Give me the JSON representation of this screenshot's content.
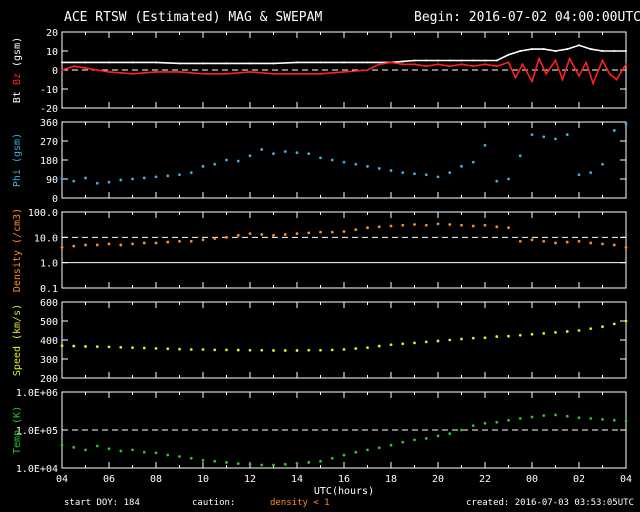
{
  "header": {
    "title": "ACE RTSW (Estimated) MAG & SWEPAM",
    "begin": "Begin: 2016-07-02 04:00:00UTC"
  },
  "footer": {
    "start_doy": "start DOY: 184",
    "caution_label": "caution:",
    "caution_text": "density < 1",
    "created": "created: 2016-07-03 03:53:05UTC"
  },
  "colors": {
    "background": "#000000",
    "axis": "#ffffff",
    "bt": "#ffffff",
    "bz": "#ff2020",
    "phi": "#3ab0e0",
    "density": "#ff8c20",
    "speed": "#e6e62a",
    "temp": "#30c030",
    "caution": "#ff8c20"
  },
  "chart_data": [
    {
      "id": "mag",
      "type": "line",
      "ylabel": [
        "Bt",
        "Bz",
        "(gsm)"
      ],
      "ylabel_colors": [
        "#ffffff",
        "#ff2020",
        "#ffffff"
      ],
      "ylim": [
        -20,
        20
      ],
      "yticks": [
        -20,
        -10,
        0,
        10,
        20
      ],
      "ytick_labels": [
        "-20",
        "-10",
        "0",
        "10",
        "20"
      ],
      "reference_lines": [
        0
      ],
      "series": [
        {
          "color": "#ffffff",
          "style": "line",
          "x": [
            0,
            1,
            2,
            3,
            4,
            5,
            6,
            7,
            8,
            9,
            10,
            11,
            12,
            13,
            14,
            14.5,
            15,
            15.5,
            16,
            16.5,
            17,
            17.5,
            18,
            18.5,
            19,
            19.5,
            20,
            20.5,
            21,
            21.5,
            22,
            22.5,
            23,
            23.5,
            24
          ],
          "y": [
            4,
            4,
            4,
            4,
            4,
            3.5,
            3.5,
            3.5,
            3.5,
            3.5,
            4,
            4,
            4,
            4,
            4,
            4.5,
            5,
            5,
            5,
            5,
            5,
            5,
            5,
            5,
            8,
            10,
            11,
            11,
            10,
            11,
            13,
            11,
            10,
            10,
            10
          ]
        },
        {
          "color": "#ff2020",
          "style": "line",
          "x": [
            0,
            0.5,
            1,
            2,
            3,
            4,
            5,
            6,
            7,
            8,
            9,
            10,
            11,
            12,
            13,
            13.5,
            14,
            14.5,
            15,
            15.5,
            16,
            16.5,
            17,
            17.5,
            18,
            18.5,
            19,
            19.3,
            19.6,
            20,
            20.3,
            20.6,
            21,
            21.3,
            21.6,
            22,
            22.3,
            22.6,
            23,
            23.3,
            23.6,
            24
          ],
          "y": [
            0,
            2,
            1,
            -1,
            -2,
            -1,
            -1,
            -2,
            -2,
            -1,
            -2,
            -2,
            -2,
            -1,
            0,
            3,
            4,
            3,
            3,
            2,
            3,
            2,
            3,
            2,
            3,
            2,
            4,
            -4,
            3,
            -6,
            6,
            -2,
            5,
            -5,
            6,
            -3,
            4,
            -7,
            5,
            -2,
            -5,
            3
          ]
        }
      ]
    },
    {
      "id": "phi",
      "type": "scatter",
      "ylabel": [
        "Phi (gsm)"
      ],
      "ylabel_colors": [
        "#3ab0e0"
      ],
      "ylim": [
        0,
        360
      ],
      "yticks": [
        0,
        90,
        180,
        270,
        360
      ],
      "ytick_labels": [
        "0",
        "90",
        "180",
        "270",
        "360"
      ],
      "reference_lines": [],
      "series": [
        {
          "color": "#3ab0e0",
          "style": "dots",
          "x": [
            0,
            0.5,
            1,
            1.5,
            2,
            2.5,
            3,
            3.5,
            4,
            4.5,
            5,
            5.5,
            6,
            6.5,
            7,
            7.5,
            8,
            8.5,
            9,
            9.5,
            10,
            10.5,
            11,
            11.5,
            12,
            12.5,
            13,
            13.5,
            14,
            14.5,
            15,
            15.5,
            16,
            16.5,
            17,
            17.5,
            18,
            18.5,
            19,
            19.5,
            20,
            20.5,
            21,
            21.5,
            22,
            22.5,
            23,
            23.5,
            24
          ],
          "y": [
            90,
            80,
            95,
            70,
            75,
            85,
            90,
            95,
            100,
            105,
            110,
            120,
            150,
            160,
            180,
            175,
            200,
            230,
            210,
            220,
            215,
            210,
            190,
            180,
            170,
            160,
            150,
            140,
            130,
            120,
            115,
            110,
            100,
            120,
            150,
            170,
            250,
            80,
            90,
            200,
            300,
            290,
            280,
            300,
            110,
            120,
            160,
            320,
            350
          ]
        }
      ]
    },
    {
      "id": "density",
      "type": "scatter",
      "scale": "log",
      "ylabel": [
        "Density (/cm3)"
      ],
      "ylabel_colors": [
        "#ff8c20"
      ],
      "ylim": [
        0.1,
        100
      ],
      "yticks": [
        0.1,
        1,
        10,
        100
      ],
      "ytick_labels": [
        "0.1",
        "1.0",
        "10.0",
        "100.0"
      ],
      "reference_lines": [
        10
      ],
      "solid_lines": [
        1
      ],
      "series": [
        {
          "color": "#ff8c20",
          "style": "dots",
          "x": [
            0,
            0.5,
            1,
            1.5,
            2,
            2.5,
            3,
            3.5,
            4,
            4.5,
            5,
            5.5,
            6,
            6.5,
            7,
            7.5,
            8,
            8.5,
            9,
            9.5,
            10,
            10.5,
            11,
            11.5,
            12,
            12.5,
            13,
            13.5,
            14,
            14.5,
            15,
            15.5,
            16,
            16.5,
            17,
            17.5,
            18,
            18.5,
            19,
            19.5,
            20,
            20.5,
            21,
            21.5,
            22,
            22.5,
            23,
            23.5,
            24
          ],
          "y": [
            4,
            4.5,
            5,
            5,
            5.5,
            5,
            5.5,
            6,
            6,
            6.5,
            7,
            7,
            8,
            9,
            10,
            12,
            14,
            13,
            12,
            13,
            14,
            15,
            16,
            16,
            17,
            20,
            24,
            26,
            28,
            30,
            32,
            30,
            34,
            32,
            30,
            28,
            30,
            26,
            24,
            7,
            8,
            7,
            6,
            6.5,
            7,
            6,
            5.5,
            5,
            4
          ]
        }
      ]
    },
    {
      "id": "speed",
      "type": "scatter",
      "ylabel": [
        "Speed (km/s)"
      ],
      "ylabel_colors": [
        "#e6e62a"
      ],
      "ylim": [
        200,
        600
      ],
      "yticks": [
        200,
        300,
        400,
        500,
        600
      ],
      "ytick_labels": [
        "200",
        "300",
        "400",
        "500",
        "600"
      ],
      "reference_lines": [],
      "series": [
        {
          "color": "#e6e62a",
          "style": "dots",
          "x": [
            0,
            0.5,
            1,
            1.5,
            2,
            2.5,
            3,
            3.5,
            4,
            4.5,
            5,
            5.5,
            6,
            6.5,
            7,
            7.5,
            8,
            8.5,
            9,
            9.5,
            10,
            10.5,
            11,
            11.5,
            12,
            12.5,
            13,
            13.5,
            14,
            14.5,
            15,
            15.5,
            16,
            16.5,
            17,
            17.5,
            18,
            18.5,
            19,
            19.5,
            20,
            20.5,
            21,
            21.5,
            22,
            22.5,
            23,
            23.5,
            24
          ],
          "y": [
            370,
            368,
            366,
            365,
            364,
            362,
            360,
            358,
            356,
            354,
            352,
            350,
            350,
            348,
            348,
            347,
            346,
            346,
            345,
            345,
            345,
            346,
            346,
            348,
            350,
            355,
            360,
            368,
            375,
            380,
            385,
            390,
            395,
            400,
            405,
            410,
            412,
            418,
            420,
            425,
            430,
            435,
            440,
            445,
            450,
            460,
            470,
            485,
            500
          ]
        }
      ]
    },
    {
      "id": "temp",
      "type": "scatter",
      "scale": "log",
      "ylabel": [
        "Temp (K)"
      ],
      "ylabel_colors": [
        "#30c030"
      ],
      "ylim": [
        10000,
        1000000
      ],
      "yticks": [
        10000,
        100000,
        1000000
      ],
      "ytick_labels": [
        "1.0E+04",
        "1.0E+05",
        "1.0E+06"
      ],
      "reference_lines": [
        100000
      ],
      "series": [
        {
          "color": "#30c030",
          "style": "dots",
          "x": [
            0,
            0.5,
            1,
            1.5,
            2,
            2.5,
            3,
            3.5,
            4,
            4.5,
            5,
            5.5,
            6,
            6.5,
            7,
            7.5,
            8,
            8.5,
            9,
            9.5,
            10,
            10.5,
            11,
            11.5,
            12,
            12.5,
            13,
            13.5,
            14,
            14.5,
            15,
            15.5,
            16,
            16.5,
            17,
            17.5,
            18,
            18.5,
            19,
            19.5,
            20,
            20.5,
            21,
            21.5,
            22,
            22.5,
            23,
            23.5,
            24
          ],
          "y": [
            40000,
            35000,
            30000,
            38000,
            32000,
            28000,
            30000,
            26000,
            25000,
            22000,
            20000,
            18000,
            16000,
            15000,
            14000,
            13000,
            12500,
            12000,
            12000,
            12500,
            13000,
            14000,
            15000,
            18000,
            22000,
            26000,
            30000,
            34000,
            40000,
            48000,
            55000,
            60000,
            70000,
            80000,
            100000,
            130000,
            150000,
            160000,
            180000,
            200000,
            220000,
            240000,
            250000,
            230000,
            210000,
            200000,
            190000,
            180000,
            170000
          ]
        }
      ]
    }
  ],
  "x_axis": {
    "label": "UTC(hours)",
    "range_hours": [
      0,
      24
    ],
    "tick_labels": [
      "04",
      "06",
      "08",
      "10",
      "12",
      "14",
      "16",
      "18",
      "20",
      "22",
      "00",
      "02",
      "04"
    ]
  }
}
